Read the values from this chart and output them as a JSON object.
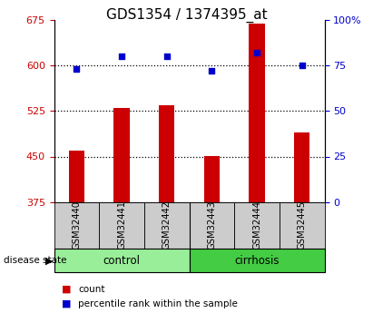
{
  "title": "GDS1354 / 1374395_at",
  "samples": [
    "GSM32440",
    "GSM32441",
    "GSM32442",
    "GSM32443",
    "GSM32444",
    "GSM32445"
  ],
  "counts": [
    460,
    530,
    535,
    450,
    670,
    490
  ],
  "percentiles": [
    73,
    80,
    80,
    72,
    82,
    75
  ],
  "ylim_left": [
    375,
    675
  ],
  "ylim_right": [
    0,
    100
  ],
  "yticks_left": [
    375,
    450,
    525,
    600,
    675
  ],
  "yticks_right": [
    0,
    25,
    50,
    75,
    100
  ],
  "ytick_labels_right": [
    "0",
    "25",
    "50",
    "75",
    "100%"
  ],
  "bar_color": "#cc0000",
  "dot_color": "#0000cc",
  "bar_bottom": 375,
  "groups": [
    {
      "label": "control",
      "indices": [
        0,
        1,
        2
      ],
      "color": "#99ee99"
    },
    {
      "label": "cirrhosis",
      "indices": [
        3,
        4,
        5
      ],
      "color": "#44cc44"
    }
  ],
  "group_label_prefix": "disease state",
  "legend_bar_label": "count",
  "legend_dot_label": "percentile rank within the sample",
  "title_fontsize": 11,
  "axis_label_color_left": "#cc0000",
  "axis_label_color_right": "#0000cc",
  "background_color": "#ffffff",
  "plot_bg_color": "#ffffff",
  "sample_box_color": "#cccccc",
  "gridline_color": "#000000"
}
